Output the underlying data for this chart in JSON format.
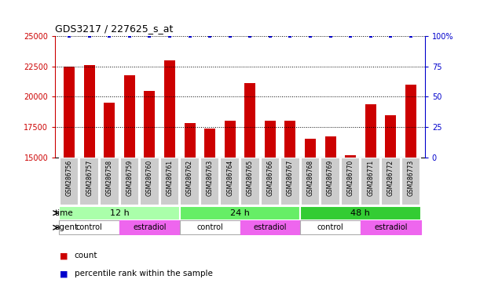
{
  "title": "GDS3217 / 227625_s_at",
  "samples": [
    "GSM286756",
    "GSM286757",
    "GSM286758",
    "GSM286759",
    "GSM286760",
    "GSM286761",
    "GSM286762",
    "GSM286763",
    "GSM286764",
    "GSM286765",
    "GSM286766",
    "GSM286767",
    "GSM286768",
    "GSM286769",
    "GSM286770",
    "GSM286771",
    "GSM286772",
    "GSM286773"
  ],
  "counts": [
    22500,
    22600,
    19500,
    21800,
    20500,
    23000,
    17800,
    17400,
    18000,
    21100,
    18000,
    18000,
    16500,
    16700,
    15200,
    19400,
    18500,
    21000
  ],
  "percentile_rank": [
    100,
    100,
    100,
    100,
    100,
    100,
    100,
    100,
    100,
    100,
    100,
    100,
    100,
    100,
    100,
    100,
    100,
    100
  ],
  "ylim_left": [
    15000,
    25000
  ],
  "ylim_right": [
    0,
    100
  ],
  "yticks_left": [
    15000,
    17500,
    20000,
    22500,
    25000
  ],
  "yticks_right": [
    0,
    25,
    50,
    75,
    100
  ],
  "bar_color": "#cc0000",
  "dot_color": "#0000cc",
  "time_groups": [
    {
      "label": "12 h",
      "start": 0,
      "end": 5,
      "color": "#aaffaa"
    },
    {
      "label": "24 h",
      "start": 6,
      "end": 11,
      "color": "#66ee66"
    },
    {
      "label": "48 h",
      "start": 12,
      "end": 17,
      "color": "#33cc33"
    }
  ],
  "agent_groups": [
    {
      "label": "control",
      "start": 0,
      "end": 2,
      "color": "#ffffff"
    },
    {
      "label": "estradiol",
      "start": 3,
      "end": 5,
      "color": "#ee66ee"
    },
    {
      "label": "control",
      "start": 6,
      "end": 8,
      "color": "#ffffff"
    },
    {
      "label": "estradiol",
      "start": 9,
      "end": 11,
      "color": "#ee66ee"
    },
    {
      "label": "control",
      "start": 12,
      "end": 14,
      "color": "#ffffff"
    },
    {
      "label": "estradiol",
      "start": 15,
      "end": 17,
      "color": "#ee66ee"
    }
  ],
  "sample_box_color": "#cccccc",
  "legend_count_color": "#cc0000",
  "legend_pct_color": "#0000cc",
  "background_color": "#ffffff",
  "grid_color": "#000000",
  "time_label_fontsize": 8,
  "agent_label_fontsize": 7,
  "sample_fontsize": 5.5,
  "bar_width": 0.55
}
